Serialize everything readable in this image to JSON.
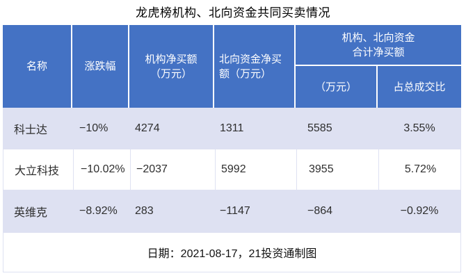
{
  "title": "龙虎榜机构、北向资金共同买卖情况",
  "colors": {
    "header_blue": "#4472C4",
    "band_lavender": "#dee1f2",
    "text_dark": "#2e2e2e"
  },
  "header": {
    "name": "名称",
    "change": "涨跌幅",
    "inst_line1": "机构净买额",
    "inst_line2": "（万元）",
    "north_line1": "北向资金净买",
    "north_line2": "额（万元）",
    "group_line1": "机构、北向资金",
    "group_line2": "合计净买额",
    "group_amount": "（万元）",
    "group_ratio": "占总成交比"
  },
  "rows": [
    {
      "name": "科士达",
      "change": "−10%",
      "inst": "4274",
      "north": "1311",
      "total": "5585",
      "ratio": "3.55%"
    },
    {
      "name": "大立科技",
      "change": "−10.02%",
      "inst": "−2037",
      "north": "5992",
      "total": "3955",
      "ratio": "5.72%"
    },
    {
      "name": "英维克",
      "change": "−8.92%",
      "inst": "283",
      "north": "−1147",
      "total": "−864",
      "ratio": "−0.92%"
    }
  ],
  "footer": {
    "note": "日期：2021-08-17，21投资通制图"
  },
  "chart_data": {
    "type": "table",
    "title": "龙虎榜机构、北向资金共同买卖情况",
    "columns": [
      "名称",
      "涨跌幅",
      "机构净买额（万元）",
      "北向资金净买额（万元）",
      "机构、北向资金合计净买额（万元）",
      "机构、北向资金合计净买额占总成交比"
    ],
    "rows": [
      [
        "科士达",
        "-10%",
        4274,
        1311,
        5585,
        "3.55%"
      ],
      [
        "大立科技",
        "-10.02%",
        -2037,
        5992,
        3955,
        "5.72%"
      ],
      [
        "英维克",
        "-8.92%",
        283,
        -1147,
        -864,
        "-0.92%"
      ]
    ],
    "note": "日期：2021-08-17，21投资通制图"
  }
}
